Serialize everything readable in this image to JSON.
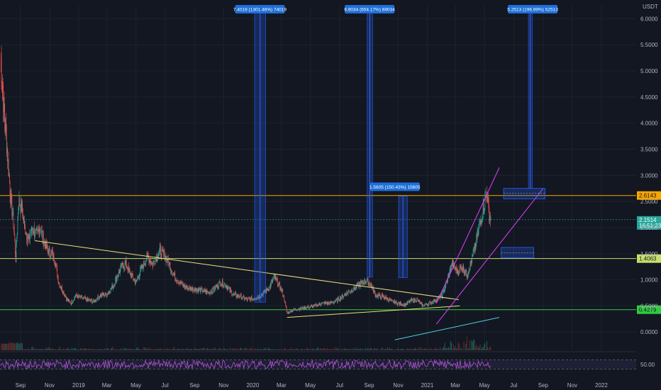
{
  "chart_data": {
    "type": "candlestick",
    "currency_label": "USDT",
    "y_scale": "linear",
    "ylim": [
      -0.35,
      6.25
    ],
    "y_ticks": [
      "6.0000",
      "5.5000",
      "5.0000",
      "4.5000",
      "4.0000",
      "3.5000",
      "3.0000",
      "2.5000",
      "2.0000",
      "1.5000",
      "1.0000",
      "0.5000",
      "0.0000"
    ],
    "y_tick_values": [
      6.0,
      5.5,
      5.0,
      4.5,
      4.0,
      3.5,
      3.0,
      2.5,
      2.0,
      1.5,
      1.0,
      0.5,
      0.0
    ],
    "x_range": [
      "2018-07-20",
      "2022-03-15"
    ],
    "x_ticks": [
      {
        "label": "Sep",
        "date": "2018-09-01"
      },
      {
        "label": "Nov",
        "date": "2018-11-01"
      },
      {
        "label": "2019",
        "date": "2019-01-01"
      },
      {
        "label": "Mar",
        "date": "2019-03-01"
      },
      {
        "label": "May",
        "date": "2019-05-01"
      },
      {
        "label": "Jul",
        "date": "2019-07-01"
      },
      {
        "label": "Sep",
        "date": "2019-09-01"
      },
      {
        "label": "Nov",
        "date": "2019-11-01"
      },
      {
        "label": "2020",
        "date": "2020-01-01"
      },
      {
        "label": "Mar",
        "date": "2020-03-01"
      },
      {
        "label": "May",
        "date": "2020-05-01"
      },
      {
        "label": "Jul",
        "date": "2020-07-01"
      },
      {
        "label": "Sep",
        "date": "2020-09-01"
      },
      {
        "label": "Nov",
        "date": "2020-11-01"
      },
      {
        "label": "2021",
        "date": "2021-01-01"
      },
      {
        "label": "Mar",
        "date": "2021-03-01"
      },
      {
        "label": "May",
        "date": "2021-05-01"
      },
      {
        "label": "Jul",
        "date": "2021-07-01"
      },
      {
        "label": "Sep",
        "date": "2021-09-01"
      },
      {
        "label": "Nov",
        "date": "2021-11-01"
      },
      {
        "label": "2022",
        "date": "2022-01-01"
      }
    ],
    "price_path": [
      [
        "2018-07-21",
        5.3
      ],
      [
        "2018-07-28",
        4.3
      ],
      [
        "2018-08-04",
        3.5
      ],
      [
        "2018-08-11",
        2.6
      ],
      [
        "2018-08-18",
        2.0
      ],
      [
        "2018-08-22",
        1.4
      ],
      [
        "2018-08-28",
        2.5
      ],
      [
        "2018-09-03",
        2.4
      ],
      [
        "2018-09-10",
        2.0
      ],
      [
        "2018-09-18",
        1.75
      ],
      [
        "2018-09-26",
        2.0
      ],
      [
        "2018-10-04",
        1.85
      ],
      [
        "2018-10-12",
        2.0
      ],
      [
        "2018-10-20",
        1.75
      ],
      [
        "2018-10-28",
        1.55
      ],
      [
        "2018-11-06",
        1.5
      ],
      [
        "2018-11-14",
        1.3
      ],
      [
        "2018-11-20",
        0.95
      ],
      [
        "2018-11-28",
        0.8
      ],
      [
        "2018-12-08",
        0.62
      ],
      [
        "2018-12-16",
        0.55
      ],
      [
        "2018-12-26",
        0.7
      ],
      [
        "2019-01-08",
        0.65
      ],
      [
        "2019-01-20",
        0.62
      ],
      [
        "2019-02-01",
        0.58
      ],
      [
        "2019-02-15",
        0.7
      ],
      [
        "2019-03-01",
        0.72
      ],
      [
        "2019-03-15",
        0.9
      ],
      [
        "2019-04-01",
        1.25
      ],
      [
        "2019-04-10",
        1.3
      ],
      [
        "2019-04-20",
        1.1
      ],
      [
        "2019-05-01",
        0.95
      ],
      [
        "2019-05-12",
        1.2
      ],
      [
        "2019-05-25",
        1.45
      ],
      [
        "2019-06-05",
        1.3
      ],
      [
        "2019-06-20",
        1.55
      ],
      [
        "2019-07-01",
        1.45
      ],
      [
        "2019-07-10",
        1.3
      ],
      [
        "2019-07-18",
        1.1
      ],
      [
        "2019-08-01",
        0.95
      ],
      [
        "2019-08-15",
        0.85
      ],
      [
        "2019-09-01",
        0.82
      ],
      [
        "2019-09-15",
        0.8
      ],
      [
        "2019-10-01",
        0.75
      ],
      [
        "2019-10-15",
        0.85
      ],
      [
        "2019-10-25",
        0.95
      ],
      [
        "2019-11-05",
        0.9
      ],
      [
        "2019-11-20",
        0.72
      ],
      [
        "2019-12-05",
        0.68
      ],
      [
        "2019-12-20",
        0.62
      ],
      [
        "2020-01-05",
        0.64
      ],
      [
        "2020-01-20",
        0.72
      ],
      [
        "2020-02-05",
        0.85
      ],
      [
        "2020-02-15",
        1.05
      ],
      [
        "2020-02-25",
        0.9
      ],
      [
        "2020-03-05",
        0.72
      ],
      [
        "2020-03-13",
        0.36
      ],
      [
        "2020-03-25",
        0.42
      ],
      [
        "2020-04-10",
        0.45
      ],
      [
        "2020-04-25",
        0.47
      ],
      [
        "2020-05-10",
        0.5
      ],
      [
        "2020-05-25",
        0.55
      ],
      [
        "2020-06-10",
        0.55
      ],
      [
        "2020-06-25",
        0.6
      ],
      [
        "2020-07-10",
        0.7
      ],
      [
        "2020-07-25",
        0.8
      ],
      [
        "2020-08-10",
        0.9
      ],
      [
        "2020-08-25",
        0.98
      ],
      [
        "2020-09-05",
        0.9
      ],
      [
        "2020-09-15",
        0.7
      ],
      [
        "2020-09-30",
        0.68
      ],
      [
        "2020-10-15",
        0.6
      ],
      [
        "2020-10-30",
        0.55
      ],
      [
        "2020-11-15",
        0.52
      ],
      [
        "2020-11-28",
        0.6
      ],
      [
        "2020-12-10",
        0.62
      ],
      [
        "2020-12-22",
        0.5
      ],
      [
        "2021-01-05",
        0.55
      ],
      [
        "2021-01-20",
        0.62
      ],
      [
        "2021-02-01",
        0.7
      ],
      [
        "2021-02-12",
        1.0
      ],
      [
        "2021-02-22",
        1.3
      ],
      [
        "2021-03-05",
        1.15
      ],
      [
        "2021-03-15",
        1.25
      ],
      [
        "2021-03-25",
        1.1
      ],
      [
        "2021-04-05",
        1.4
      ],
      [
        "2021-04-14",
        1.75
      ],
      [
        "2021-04-22",
        2.1
      ],
      [
        "2021-05-01",
        2.45
      ],
      [
        "2021-05-06",
        2.7
      ],
      [
        "2021-05-10",
        2.25
      ],
      [
        "2021-05-14",
        2.15
      ]
    ],
    "levels": [
      {
        "label": "2.6143",
        "value": 2.6143,
        "color": "#f7a600"
      },
      {
        "label": "1.4063",
        "value": 1.4063,
        "color": "#c8e06b"
      },
      {
        "label": "0.4279",
        "value": 0.4279,
        "color": "#2ecc40"
      }
    ],
    "last_price": {
      "label": "2.1514",
      "countdown": "16:51:23",
      "value": 2.1514,
      "color": "#26a69a"
    },
    "trendlines": [
      {
        "color": "#e8e27a",
        "points": [
          [
            "2018-10-01",
            1.75
          ],
          [
            "2021-03-08",
            0.62
          ]
        ]
      },
      {
        "color": "#e8e27a",
        "points": [
          [
            "2020-03-13",
            0.28
          ],
          [
            "2021-03-10",
            0.5
          ]
        ]
      },
      {
        "color": "#e040fb",
        "points": [
          [
            "2021-01-20",
            0.55
          ],
          [
            "2021-06-01",
            3.15
          ]
        ]
      },
      {
        "color": "#e040fb",
        "points": [
          [
            "2021-01-20",
            0.15
          ],
          [
            "2021-09-01",
            2.75
          ]
        ]
      },
      {
        "color": "#4dd0e1",
        "points": [
          [
            "2020-10-25",
            -0.15
          ],
          [
            "2021-06-01",
            0.28
          ]
        ]
      }
    ],
    "measurements": [
      {
        "label": "7.4019 (1301.46%) 74019",
        "start": "2020-01-05",
        "end": "2020-01-28",
        "from": 0.57,
        "to": 6.25,
        "tag_date": "2020-01-16",
        "tag_value": 6.25
      },
      {
        "label": "6.9034 (654.17%) 69034",
        "start": "2020-08-28",
        "end": "2020-09-08",
        "from": 1.05,
        "to": 6.25,
        "tag_date": "2020-09-02",
        "tag_value": 6.25
      },
      {
        "label": "1.5605 (150.43%) 15605",
        "start": "2020-11-02",
        "end": "2020-11-20",
        "from": 1.04,
        "to": 2.6,
        "tag_date": "2020-10-25",
        "tag_value": 2.85
      },
      {
        "label": "5.2513 (196.99%) 52513",
        "start": "2021-08-01",
        "end": "2021-08-09",
        "from": 2.75,
        "to": 6.25,
        "tag_date": "2021-08-10",
        "tag_value": 6.25
      }
    ],
    "zones": [
      {
        "start": "2021-06-10",
        "end": "2021-09-05",
        "from": 2.55,
        "to": 2.75,
        "mid": 2.66
      },
      {
        "start": "2021-06-05",
        "end": "2021-08-12",
        "from": 1.42,
        "to": 1.62,
        "mid": 1.52
      }
    ],
    "rsi": {
      "label": "50.00",
      "level": 50,
      "upper": 70,
      "lower": 30
    }
  }
}
